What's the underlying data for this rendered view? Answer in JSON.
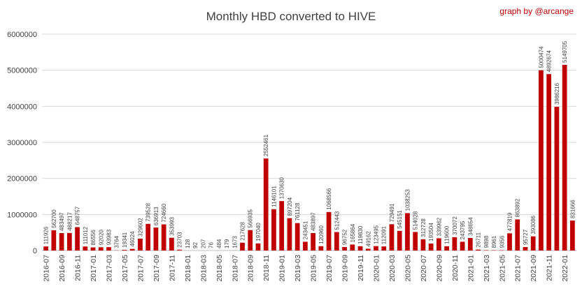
{
  "title": "Monthly HBD converted to  HIVE",
  "credit": "graph by @arcange",
  "chart_data": {
    "type": "bar",
    "title": "Monthly HBD converted to  HIVE",
    "xlabel": "",
    "ylabel": "",
    "ylim": [
      0,
      6000000
    ],
    "yticks": [
      "0",
      "1000000",
      "2000000",
      "3000000",
      "4000000",
      "5000000",
      "6000000"
    ],
    "grid": true,
    "legend": "none",
    "bar_color": "#c00000",
    "categories": [
      "2016-07",
      "2016-08",
      "2016-09",
      "2016-10",
      "2016-11",
      "2016-12",
      "2017-01",
      "2017-02",
      "2017-03",
      "2017-04",
      "2017-05",
      "2017-06",
      "2017-07",
      "2017-08",
      "2017-09",
      "2017-10",
      "2017-11",
      "2017-12",
      "2018-01",
      "2018-02",
      "2018-03",
      "2018-04",
      "2018-05",
      "2018-06",
      "2018-07",
      "2018-08",
      "2018-09",
      "2018-10",
      "2018-11",
      "2018-12",
      "2019-01",
      "2019-02",
      "2019-03",
      "2019-04",
      "2019-05",
      "2019-06",
      "2019-07",
      "2019-08",
      "2019-09",
      "2019-10",
      "2019-11",
      "2019-12",
      "2020-01",
      "2020-02",
      "2020-03",
      "2020-04",
      "2020-05",
      "2020-06",
      "2020-07",
      "2020-08",
      "2020-09",
      "2020-10",
      "2020-11",
      "2020-12",
      "2021-01",
      "2021-02",
      "2021-03",
      "2021-04",
      "2021-05",
      "2021-06",
      "2021-07",
      "2021-08",
      "2021-09",
      "2021-10",
      "2021-11",
      "2021-12",
      "2022-01",
      "2022-02"
    ],
    "values": [
      111926,
      562700,
      483497,
      488217,
      648757,
      111012,
      86556,
      92020,
      93983,
      3764,
      19341,
      46024,
      329602,
      739528,
      636913,
      724660,
      353993,
      23703,
      128,
      92,
      207,
      76,
      484,
      179,
      1673,
      217628,
      566935,
      197040,
      2552461,
      1146101,
      1370630,
      897204,
      761128,
      243451,
      483897,
      120960,
      1068566,
      512443,
      96752,
      165864,
      119830,
      49162,
      123495,
      112091,
      729491,
      545151,
      1038253,
      514028,
      312728,
      193504,
      339962,
      119600,
      370072,
      243795,
      348654,
      26711,
      9898,
      8961,
      9356,
      477819,
      863892,
      95727,
      393086,
      5000474,
      4892674,
      3986216,
      5149705,
      831666
    ],
    "data_labels": [
      "111926",
      "562700",
      "483497",
      "488217",
      "648757",
      "111012",
      "86556",
      "92020",
      "93983",
      "3764",
      "19341",
      "46024",
      "329602",
      "739528",
      "636913",
      "724660",
      "353993",
      "23703",
      "128",
      "92",
      "207",
      "76",
      "484",
      "179",
      "1673",
      "217628",
      "566935",
      "197040",
      "2552461",
      "1146101",
      "1370630",
      "897204",
      "761128",
      "243451",
      "483897",
      "120960",
      "1068566",
      "512443",
      "96752",
      "165864",
      "119830",
      "49162",
      "123495",
      "112091",
      "729491",
      "545151",
      "1038253",
      "514028",
      "312728",
      "193504",
      "339962",
      "119600",
      "370072",
      "243795",
      "348654",
      "26711",
      "9898",
      "8961",
      "9356",
      "477819",
      "863892",
      "95727",
      "393086",
      "5000474",
      "4892674",
      "3986216",
      "5149705",
      "831666"
    ],
    "xtick_labels": [
      "2016-07",
      "2016-09",
      "2016-11",
      "2017-01",
      "2017-03",
      "2017-05",
      "2017-07",
      "2017-09",
      "2017-11",
      "2018-01",
      "2018-03",
      "2018-05",
      "2018-07",
      "2018-09",
      "2018-11",
      "2019-01",
      "2019-03",
      "2019-05",
      "2019-07",
      "2019-09",
      "2019-11",
      "2020-01",
      "2020-03",
      "2020-05",
      "2020-07",
      "2020-09",
      "2020-11",
      "2021-01",
      "2021-03",
      "2021-05",
      "2021-07",
      "2021-09",
      "2021-11",
      "2022-01"
    ]
  }
}
